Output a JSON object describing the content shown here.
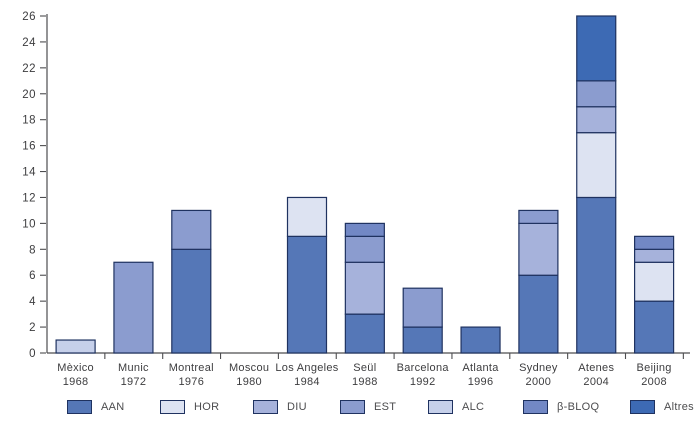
{
  "chart_data": {
    "type": "stacked-bar",
    "title": "",
    "xlabel": "",
    "ylabel": "",
    "ylim": [
      0,
      26
    ],
    "ytick_step": 2,
    "grid": false,
    "legend_position": "bottom",
    "categories": [
      {
        "city": "Mèxico",
        "year": "1968"
      },
      {
        "city": "Munic",
        "year": "1972"
      },
      {
        "city": "Montreal",
        "year": "1976"
      },
      {
        "city": "Moscou",
        "year": "1980"
      },
      {
        "city": "Los Angeles",
        "year": "1984"
      },
      {
        "city": "Seül",
        "year": "1988"
      },
      {
        "city": "Barcelona",
        "year": "1992"
      },
      {
        "city": "Atlanta",
        "year": "1996"
      },
      {
        "city": "Sydney",
        "year": "2000"
      },
      {
        "city": "Atenes",
        "year": "2004"
      },
      {
        "city": "Beijing",
        "year": "2008"
      }
    ],
    "series": [
      {
        "name": "AAN",
        "color": "#5577b7",
        "values": [
          0,
          0,
          8,
          0,
          9,
          3,
          2,
          2,
          6,
          12,
          4
        ]
      },
      {
        "name": "HOR",
        "color": "#dde3f2",
        "values": [
          0,
          0,
          0,
          0,
          3,
          0,
          0,
          0,
          0,
          5,
          3
        ]
      },
      {
        "name": "DIU",
        "color": "#a6b2db",
        "values": [
          0,
          0,
          0,
          0,
          0,
          4,
          0,
          0,
          4,
          2,
          1
        ]
      },
      {
        "name": "EST",
        "color": "#8b9ccf",
        "values": [
          0,
          7,
          3,
          0,
          0,
          2,
          3,
          0,
          1,
          2,
          0
        ]
      },
      {
        "name": "ALC",
        "color": "#c6d0ea",
        "values": [
          1,
          0,
          0,
          0,
          0,
          0,
          0,
          0,
          0,
          0,
          0
        ]
      },
      {
        "name": "β-BLOQ",
        "color": "#7288c5",
        "values": [
          0,
          0,
          0,
          0,
          0,
          1,
          0,
          0,
          0,
          0,
          1
        ]
      },
      {
        "name": "Altres",
        "color": "#3d6ab4",
        "values": [
          0,
          0,
          0,
          0,
          0,
          0,
          0,
          0,
          0,
          5,
          0
        ]
      }
    ],
    "bar_totals": [
      1,
      7,
      11,
      0,
      12,
      10,
      5,
      2,
      11,
      26,
      9
    ],
    "colors": {
      "bar_border": "#1f3260",
      "axis": "#4d4d4f",
      "tick_text": "#3d3d3f",
      "background": "#ffffff"
    }
  }
}
